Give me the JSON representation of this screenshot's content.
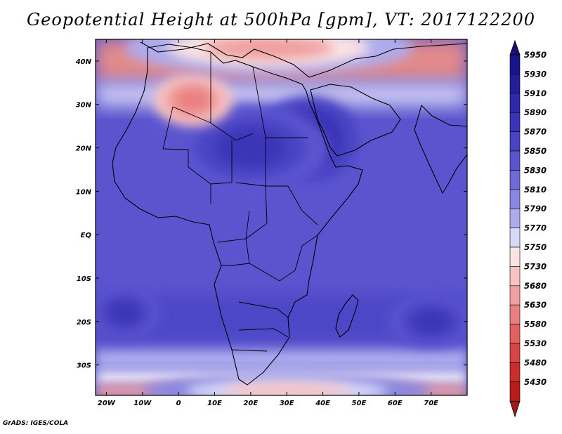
{
  "title": "Geopotential Height at 500hPa [gpm], VT: 2017122200",
  "credit": "GrADS: IGES/COLA",
  "map": {
    "projection": "lat-lon",
    "lon_range": [
      -23,
      80
    ],
    "lat_range": [
      -37,
      45
    ],
    "x_ticks": [
      {
        "value": -20,
        "label": "20W"
      },
      {
        "value": -10,
        "label": "10W"
      },
      {
        "value": 0,
        "label": "0"
      },
      {
        "value": 10,
        "label": "10E"
      },
      {
        "value": 20,
        "label": "20E"
      },
      {
        "value": 30,
        "label": "30E"
      },
      {
        "value": 40,
        "label": "40E"
      },
      {
        "value": 50,
        "label": "50E"
      },
      {
        "value": 60,
        "label": "60E"
      },
      {
        "value": 70,
        "label": "70E"
      }
    ],
    "y_ticks": [
      {
        "value": 40,
        "label": "40N"
      },
      {
        "value": 30,
        "label": "30N"
      },
      {
        "value": 20,
        "label": "20N"
      },
      {
        "value": 10,
        "label": "10N"
      },
      {
        "value": 0,
        "label": "EQ"
      },
      {
        "value": -10,
        "label": "10S"
      },
      {
        "value": -20,
        "label": "20S"
      },
      {
        "value": -30,
        "label": "30S"
      }
    ],
    "field_features": [
      {
        "name": "ridge-sudan-egypt",
        "lon": 36,
        "lat": 22,
        "rx": 14,
        "ry": 10,
        "level": 5910
      },
      {
        "name": "ridge-sahara",
        "lon": 20,
        "lat": 20,
        "rx": 22,
        "ry": 10,
        "level": 5890
      },
      {
        "name": "high-south-atlantic",
        "lon": -15,
        "lat": -18,
        "rx": 10,
        "ry": 6,
        "level": 5890
      },
      {
        "name": "high-south-indian",
        "lon": 70,
        "lat": -20,
        "rx": 12,
        "ry": 6,
        "level": 5880
      },
      {
        "name": "low-algeria",
        "lon": 4,
        "lat": 31,
        "rx": 11,
        "ry": 6,
        "level": 5630
      },
      {
        "name": "low-mediterranean",
        "lon": 25,
        "lat": 43,
        "rx": 40,
        "ry": 6,
        "level": 5700
      },
      {
        "name": "trough-southern",
        "lon": 30,
        "lat": -36,
        "rx": 40,
        "ry": 4,
        "level": 5720
      }
    ]
  },
  "colorbar": {
    "levels": [
      {
        "value": "5950",
        "color": "#18148c"
      },
      {
        "value": "5930",
        "color": "#231e9a"
      },
      {
        "value": "5910",
        "color": "#2e28aa"
      },
      {
        "value": "5890",
        "color": "#3a35b8"
      },
      {
        "value": "5870",
        "color": "#4944c4"
      },
      {
        "value": "5850",
        "color": "#5a55cf"
      },
      {
        "value": "5830",
        "color": "#6e6ad8"
      },
      {
        "value": "5810",
        "color": "#8a87e2"
      },
      {
        "value": "5790",
        "color": "#aeacee"
      },
      {
        "value": "5770",
        "color": "#d8d8f8"
      },
      {
        "value": "5750",
        "color": "#fbe3e3"
      },
      {
        "value": "5730",
        "color": "#f6c3c3"
      },
      {
        "value": "5680",
        "color": "#f0a0a0"
      },
      {
        "value": "5630",
        "color": "#e98080"
      },
      {
        "value": "5580",
        "color": "#e26060"
      },
      {
        "value": "5530",
        "color": "#d84545"
      },
      {
        "value": "5480",
        "color": "#cb2d2d"
      },
      {
        "value": "5430",
        "color": "#b81c1c"
      }
    ],
    "top_arrow_color": "#1a1070",
    "bottom_arrow_color": "#a01818"
  },
  "colors": {
    "background_field": "#5a55cf",
    "outline": "#000000"
  }
}
